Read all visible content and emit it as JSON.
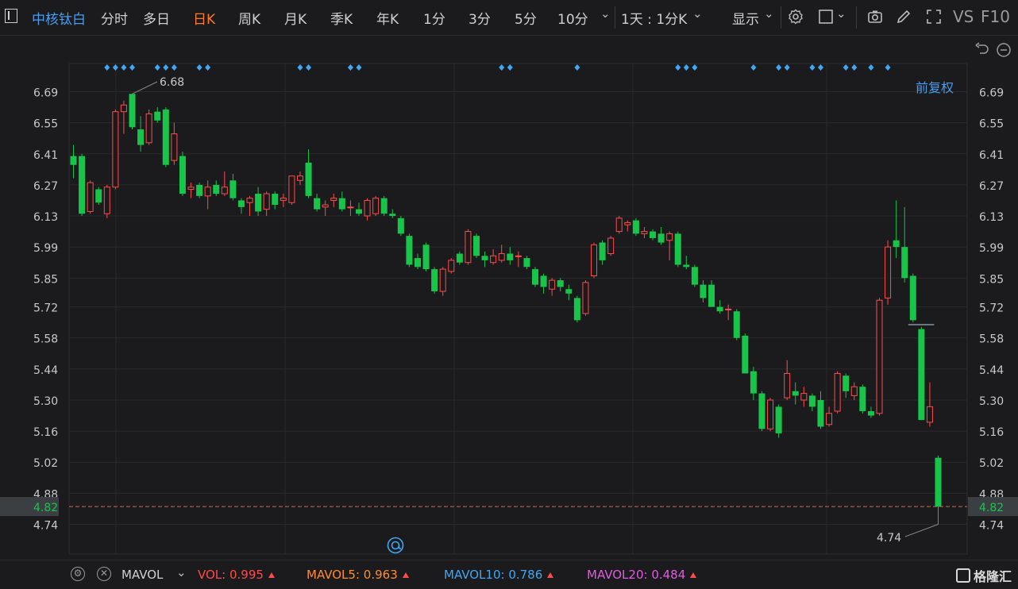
{
  "toolbar": {
    "stock_name": "中核钛白",
    "tabs": [
      {
        "label": "分时",
        "active": false
      },
      {
        "label": "多日",
        "active": false
      },
      {
        "label": "日K",
        "active": true
      },
      {
        "label": "周K",
        "active": false
      },
      {
        "label": "月K",
        "active": false
      },
      {
        "label": "季K",
        "active": false
      },
      {
        "label": "年K",
        "active": false
      },
      {
        "label": "1分",
        "active": false
      },
      {
        "label": "3分",
        "active": false
      },
      {
        "label": "5分",
        "active": false
      },
      {
        "label": "10分",
        "active": false
      }
    ],
    "interval_select": "1天 : 1分K",
    "display_label": "显示",
    "vs_label": "VS",
    "f10_label": "F10"
  },
  "chart_header": {
    "adjust_label": "前复权"
  },
  "indicator_bar": {
    "indicator_name": "MAVOL",
    "vol": {
      "label": "VOL:",
      "value": "0.995",
      "color": "#ff4b4b"
    },
    "mavol5": {
      "label": "MAVOL5:",
      "value": "0.963",
      "color": "#ff8c2e"
    },
    "mavol10": {
      "label": "MAVOL10:",
      "value": "0.786",
      "color": "#3fa7f5"
    },
    "mavol20": {
      "label": "MAVOL20:",
      "value": "0.484",
      "color": "#e05be0"
    },
    "logo_text": "格隆汇"
  },
  "chart_data": {
    "type": "candlestick",
    "y_ticks": [
      "6.69",
      "6.55",
      "6.41",
      "6.27",
      "6.13",
      "5.99",
      "5.85",
      "5.72",
      "5.58",
      "5.44",
      "5.30",
      "5.16",
      "5.02",
      "4.88",
      "4.74"
    ],
    "y_range": [
      4.74,
      6.69
    ],
    "current_price": "4.82",
    "high_label": "6.68",
    "low_label": "4.74",
    "up_color": "#ff4b4b",
    "down_color": "#19c44a",
    "candles": [
      {
        "o": 6.4,
        "h": 6.45,
        "l": 6.3,
        "c": 6.36
      },
      {
        "o": 6.4,
        "h": 6.41,
        "l": 6.13,
        "c": 6.14
      },
      {
        "o": 6.15,
        "h": 6.29,
        "l": 6.14,
        "c": 6.28
      },
      {
        "o": 6.25,
        "h": 6.26,
        "l": 6.18,
        "c": 6.19
      },
      {
        "o": 6.14,
        "h": 6.27,
        "l": 6.12,
        "c": 6.26
      },
      {
        "o": 6.26,
        "h": 6.61,
        "l": 6.25,
        "c": 6.6
      },
      {
        "o": 6.6,
        "h": 6.65,
        "l": 6.5,
        "c": 6.63
      },
      {
        "o": 6.68,
        "h": 6.68,
        "l": 6.52,
        "c": 6.53
      },
      {
        "o": 6.52,
        "h": 6.58,
        "l": 6.42,
        "c": 6.45
      },
      {
        "o": 6.46,
        "h": 6.61,
        "l": 6.45,
        "c": 6.59
      },
      {
        "o": 6.6,
        "h": 6.62,
        "l": 6.55,
        "c": 6.56
      },
      {
        "o": 6.61,
        "h": 6.62,
        "l": 6.35,
        "c": 6.36
      },
      {
        "o": 6.38,
        "h": 6.55,
        "l": 6.36,
        "c": 6.5
      },
      {
        "o": 6.4,
        "h": 6.42,
        "l": 6.22,
        "c": 6.23
      },
      {
        "o": 6.25,
        "h": 6.28,
        "l": 6.21,
        "c": 6.26
      },
      {
        "o": 6.27,
        "h": 6.28,
        "l": 6.21,
        "c": 6.22
      },
      {
        "o": 6.22,
        "h": 6.29,
        "l": 6.16,
        "c": 6.26
      },
      {
        "o": 6.27,
        "h": 6.29,
        "l": 6.22,
        "c": 6.23
      },
      {
        "o": 6.23,
        "h": 6.33,
        "l": 6.22,
        "c": 6.26
      },
      {
        "o": 6.29,
        "h": 6.32,
        "l": 6.2,
        "c": 6.21
      },
      {
        "o": 6.2,
        "h": 6.21,
        "l": 6.14,
        "c": 6.17
      },
      {
        "o": 6.19,
        "h": 6.22,
        "l": 6.13,
        "c": 6.21
      },
      {
        "o": 6.23,
        "h": 6.26,
        "l": 6.13,
        "c": 6.15
      },
      {
        "o": 6.16,
        "h": 6.24,
        "l": 6.13,
        "c": 6.23
      },
      {
        "o": 6.23,
        "h": 6.24,
        "l": 6.16,
        "c": 6.18
      },
      {
        "o": 6.2,
        "h": 6.23,
        "l": 6.17,
        "c": 6.21
      },
      {
        "o": 6.19,
        "h": 6.31,
        "l": 6.18,
        "c": 6.31
      },
      {
        "o": 6.29,
        "h": 6.33,
        "l": 6.27,
        "c": 6.31
      },
      {
        "o": 6.37,
        "h": 6.43,
        "l": 6.21,
        "c": 6.22
      },
      {
        "o": 6.21,
        "h": 6.23,
        "l": 6.15,
        "c": 6.16
      },
      {
        "o": 6.17,
        "h": 6.2,
        "l": 6.13,
        "c": 6.18
      },
      {
        "o": 6.2,
        "h": 6.23,
        "l": 6.17,
        "c": 6.21
      },
      {
        "o": 6.21,
        "h": 6.24,
        "l": 6.15,
        "c": 6.16
      },
      {
        "o": 6.17,
        "h": 6.2,
        "l": 6.13,
        "c": 6.17
      },
      {
        "o": 6.16,
        "h": 6.19,
        "l": 6.13,
        "c": 6.14
      },
      {
        "o": 6.13,
        "h": 6.21,
        "l": 6.11,
        "c": 6.2
      },
      {
        "o": 6.14,
        "h": 6.22,
        "l": 6.13,
        "c": 6.21
      },
      {
        "o": 6.21,
        "h": 6.22,
        "l": 6.13,
        "c": 6.14
      },
      {
        "o": 6.14,
        "h": 6.16,
        "l": 6.12,
        "c": 6.13
      },
      {
        "o": 6.12,
        "h": 6.13,
        "l": 6.04,
        "c": 6.05
      },
      {
        "o": 6.04,
        "h": 6.05,
        "l": 5.9,
        "c": 5.91
      },
      {
        "o": 5.94,
        "h": 5.96,
        "l": 5.89,
        "c": 5.9
      },
      {
        "o": 6.0,
        "h": 6.01,
        "l": 5.88,
        "c": 5.89
      },
      {
        "o": 5.89,
        "h": 5.9,
        "l": 5.78,
        "c": 5.79
      },
      {
        "o": 5.79,
        "h": 5.9,
        "l": 5.77,
        "c": 5.89
      },
      {
        "o": 5.88,
        "h": 5.94,
        "l": 5.87,
        "c": 5.93
      },
      {
        "o": 5.96,
        "h": 5.97,
        "l": 5.91,
        "c": 5.92
      },
      {
        "o": 5.92,
        "h": 6.07,
        "l": 5.91,
        "c": 6.06
      },
      {
        "o": 6.04,
        "h": 6.05,
        "l": 5.94,
        "c": 5.95
      },
      {
        "o": 5.95,
        "h": 5.97,
        "l": 5.9,
        "c": 5.93
      },
      {
        "o": 5.92,
        "h": 5.98,
        "l": 5.91,
        "c": 5.95
      },
      {
        "o": 5.93,
        "h": 6.0,
        "l": 5.92,
        "c": 5.96
      },
      {
        "o": 5.96,
        "h": 5.99,
        "l": 5.91,
        "c": 5.93
      },
      {
        "o": 5.95,
        "h": 5.97,
        "l": 5.9,
        "c": 5.95
      },
      {
        "o": 5.94,
        "h": 5.95,
        "l": 5.89,
        "c": 5.9
      },
      {
        "o": 5.89,
        "h": 5.9,
        "l": 5.81,
        "c": 5.82
      },
      {
        "o": 5.86,
        "h": 5.87,
        "l": 5.78,
        "c": 5.81
      },
      {
        "o": 5.8,
        "h": 5.85,
        "l": 5.77,
        "c": 5.84
      },
      {
        "o": 5.84,
        "h": 5.85,
        "l": 5.79,
        "c": 5.81
      },
      {
        "o": 5.8,
        "h": 5.82,
        "l": 5.75,
        "c": 5.78
      },
      {
        "o": 5.76,
        "h": 5.77,
        "l": 5.65,
        "c": 5.66
      },
      {
        "o": 5.69,
        "h": 5.84,
        "l": 5.68,
        "c": 5.83
      },
      {
        "o": 5.86,
        "h": 6.01,
        "l": 5.85,
        "c": 6.0
      },
      {
        "o": 6.01,
        "h": 6.02,
        "l": 5.91,
        "c": 5.93
      },
      {
        "o": 5.96,
        "h": 6.04,
        "l": 5.95,
        "c": 6.03
      },
      {
        "o": 6.06,
        "h": 6.13,
        "l": 6.05,
        "c": 6.12
      },
      {
        "o": 6.09,
        "h": 6.11,
        "l": 6.06,
        "c": 6.1
      },
      {
        "o": 6.11,
        "h": 6.12,
        "l": 6.04,
        "c": 6.05
      },
      {
        "o": 6.05,
        "h": 6.08,
        "l": 6.03,
        "c": 6.06
      },
      {
        "o": 6.06,
        "h": 6.07,
        "l": 6.02,
        "c": 6.03
      },
      {
        "o": 6.05,
        "h": 6.08,
        "l": 6.0,
        "c": 6.01
      },
      {
        "o": 6.02,
        "h": 6.06,
        "l": 5.93,
        "c": 6.05
      },
      {
        "o": 6.05,
        "h": 6.06,
        "l": 5.9,
        "c": 5.91
      },
      {
        "o": 5.91,
        "h": 5.95,
        "l": 5.89,
        "c": 5.9
      },
      {
        "o": 5.9,
        "h": 5.91,
        "l": 5.81,
        "c": 5.82
      },
      {
        "o": 5.82,
        "h": 5.84,
        "l": 5.74,
        "c": 5.76
      },
      {
        "o": 5.82,
        "h": 5.84,
        "l": 5.72,
        "c": 5.72
      },
      {
        "o": 5.72,
        "h": 5.75,
        "l": 5.69,
        "c": 5.7
      },
      {
        "o": 5.71,
        "h": 5.73,
        "l": 5.66,
        "c": 5.71
      },
      {
        "o": 5.7,
        "h": 5.71,
        "l": 5.57,
        "c": 5.58
      },
      {
        "o": 5.59,
        "h": 5.6,
        "l": 5.42,
        "c": 5.42
      },
      {
        "o": 5.43,
        "h": 5.45,
        "l": 5.3,
        "c": 5.33
      },
      {
        "o": 5.33,
        "h": 5.34,
        "l": 5.16,
        "c": 5.17
      },
      {
        "o": 5.17,
        "h": 5.31,
        "l": 5.16,
        "c": 5.3
      },
      {
        "o": 5.27,
        "h": 5.28,
        "l": 5.13,
        "c": 5.15
      },
      {
        "o": 5.31,
        "h": 5.48,
        "l": 5.3,
        "c": 5.42
      },
      {
        "o": 5.34,
        "h": 5.38,
        "l": 5.28,
        "c": 5.32
      },
      {
        "o": 5.3,
        "h": 5.36,
        "l": 5.27,
        "c": 5.33
      },
      {
        "o": 5.32,
        "h": 5.33,
        "l": 5.25,
        "c": 5.27
      },
      {
        "o": 5.3,
        "h": 5.34,
        "l": 5.17,
        "c": 5.18
      },
      {
        "o": 5.19,
        "h": 5.27,
        "l": 5.18,
        "c": 5.24
      },
      {
        "o": 5.25,
        "h": 5.43,
        "l": 5.24,
        "c": 5.42
      },
      {
        "o": 5.41,
        "h": 5.42,
        "l": 5.31,
        "c": 5.34
      },
      {
        "o": 5.32,
        "h": 5.38,
        "l": 5.3,
        "c": 5.36
      },
      {
        "o": 5.36,
        "h": 5.37,
        "l": 5.24,
        "c": 5.25
      },
      {
        "o": 5.25,
        "h": 5.27,
        "l": 5.22,
        "c": 5.23
      },
      {
        "o": 5.24,
        "h": 5.76,
        "l": 5.23,
        "c": 5.75
      },
      {
        "o": 5.76,
        "h": 6.02,
        "l": 5.73,
        "c": 5.99
      },
      {
        "o": 6.02,
        "h": 6.2,
        "l": 5.94,
        "c": 5.99
      },
      {
        "o": 5.99,
        "h": 6.17,
        "l": 5.83,
        "c": 5.85
      },
      {
        "o": 5.86,
        "h": 5.87,
        "l": 5.65,
        "c": 5.66
      },
      {
        "o": 5.62,
        "h": 5.63,
        "l": 5.21,
        "c": 5.21
      },
      {
        "o": 5.2,
        "h": 5.38,
        "l": 5.18,
        "c": 5.27
      },
      {
        "o": 5.04,
        "h": 5.05,
        "l": 4.74,
        "c": 4.82
      }
    ],
    "dot_markers": [
      4,
      5,
      6,
      7,
      10,
      11,
      12,
      15,
      16,
      27,
      28,
      33,
      34,
      51,
      52,
      60,
      72,
      73,
      74,
      81,
      84,
      85,
      88,
      89,
      92,
      93,
      95,
      97
    ],
    "prev_close_marker": 5.64
  }
}
